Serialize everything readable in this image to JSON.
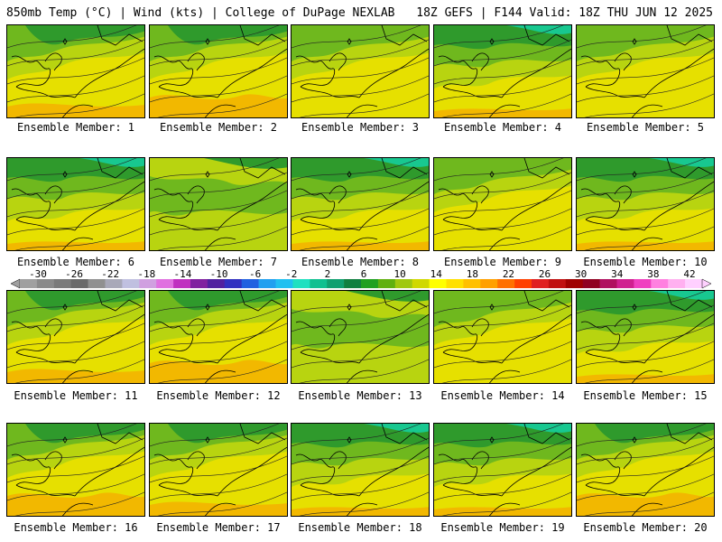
{
  "header": {
    "left": "850mb Temp (°C) | Wind (kts) | College of DuPage NEXLAB",
    "right": "18Z GEFS | F144 Valid: 18Z THU JUN 12 2025"
  },
  "label_prefix": "Ensemble Member: ",
  "members": [
    {
      "n": "1",
      "style": "warm-north"
    },
    {
      "n": "2",
      "style": "warm-south"
    },
    {
      "n": "3",
      "style": "mild"
    },
    {
      "n": "4",
      "style": "cool-north"
    },
    {
      "n": "5",
      "style": "mild"
    },
    {
      "n": "6",
      "style": "cool-north"
    },
    {
      "n": "7",
      "style": "green"
    },
    {
      "n": "8",
      "style": "cool-north"
    },
    {
      "n": "9",
      "style": "mild"
    },
    {
      "n": "10",
      "style": "cool-north"
    },
    {
      "n": "11",
      "style": "warm-north"
    },
    {
      "n": "12",
      "style": "warm-south"
    },
    {
      "n": "13",
      "style": "green"
    },
    {
      "n": "14",
      "style": "mild"
    },
    {
      "n": "15",
      "style": "cool-north"
    },
    {
      "n": "16",
      "style": "warm-south"
    },
    {
      "n": "17",
      "style": "warm-north"
    },
    {
      "n": "18",
      "style": "cool-north"
    },
    {
      "n": "19",
      "style": "cool-north"
    },
    {
      "n": "20",
      "style": "warm-south"
    }
  ],
  "colorbar": {
    "ticks": [
      "-30",
      "-26",
      "-22",
      "-18",
      "-14",
      "-10",
      "-6",
      "-2",
      "2",
      "6",
      "10",
      "14",
      "18",
      "22",
      "26",
      "30",
      "34",
      "38",
      "42"
    ],
    "colors": [
      "#a0a0a0",
      "#8a8a8a",
      "#7a7a7a",
      "#6a6a6a",
      "#909090",
      "#a8a8b8",
      "#c0c0e0",
      "#d0a0e0",
      "#e070e0",
      "#c030c0",
      "#8020a0",
      "#5020a0",
      "#3030c0",
      "#2060e0",
      "#20a0f0",
      "#20c0f0",
      "#20e0c0",
      "#10c090",
      "#10a070",
      "#108040",
      "#20a020",
      "#60b010",
      "#a0c810",
      "#d0d800",
      "#ffff00",
      "#ffe000",
      "#ffc000",
      "#ffa000",
      "#ff7000",
      "#ff4000",
      "#e02020",
      "#c01010",
      "#a00000",
      "#900020",
      "#b01060",
      "#d02090",
      "#f040c0",
      "#ff80e0",
      "#ffb0f0",
      "#ffd0ff"
    ]
  },
  "palette": {
    "yellow": "#e6e000",
    "lime": "#b8d410",
    "green": "#6fb81e",
    "dkgreen": "#2f9a2c",
    "teal": "#18c890",
    "orange": "#f2b800",
    "dkorange": "#f09a10"
  }
}
